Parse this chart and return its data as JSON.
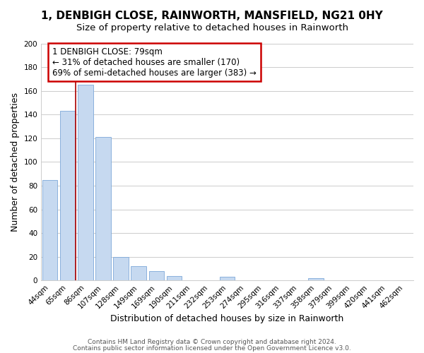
{
  "title": "1, DENBIGH CLOSE, RAINWORTH, MANSFIELD, NG21 0HY",
  "subtitle": "Size of property relative to detached houses in Rainworth",
  "xlabel": "Distribution of detached houses by size in Rainworth",
  "ylabel": "Number of detached properties",
  "bar_labels": [
    "44sqm",
    "65sqm",
    "86sqm",
    "107sqm",
    "128sqm",
    "149sqm",
    "169sqm",
    "190sqm",
    "211sqm",
    "232sqm",
    "253sqm",
    "274sqm",
    "295sqm",
    "316sqm",
    "337sqm",
    "358sqm",
    "379sqm",
    "399sqm",
    "420sqm",
    "441sqm",
    "462sqm"
  ],
  "bar_values": [
    85,
    143,
    165,
    121,
    20,
    12,
    8,
    4,
    0,
    0,
    3,
    0,
    0,
    0,
    0,
    2,
    0,
    0,
    0,
    0,
    0
  ],
  "bar_color": "#c6d9f0",
  "bar_edge_color": "#7da8d8",
  "property_line_bin_index": 1.43,
  "annotation_title": "1 DENBIGH CLOSE: 79sqm",
  "annotation_line1": "← 31% of detached houses are smaller (170)",
  "annotation_line2": "69% of semi-detached houses are larger (383) →",
  "ylim": [
    0,
    200
  ],
  "yticks": [
    0,
    20,
    40,
    60,
    80,
    100,
    120,
    140,
    160,
    180,
    200
  ],
  "footer_line1": "Contains HM Land Registry data © Crown copyright and database right 2024.",
  "footer_line2": "Contains public sector information licensed under the Open Government Licence v3.0.",
  "background_color": "#ffffff",
  "grid_color": "#cccccc",
  "title_fontsize": 11,
  "subtitle_fontsize": 9.5,
  "axis_label_fontsize": 9,
  "tick_fontsize": 7.5,
  "footer_fontsize": 6.5,
  "annotation_fontsize": 8.5,
  "red_line_color": "#aa0000",
  "annotation_box_color": "#ffffff",
  "annotation_box_edgecolor": "#cc0000"
}
